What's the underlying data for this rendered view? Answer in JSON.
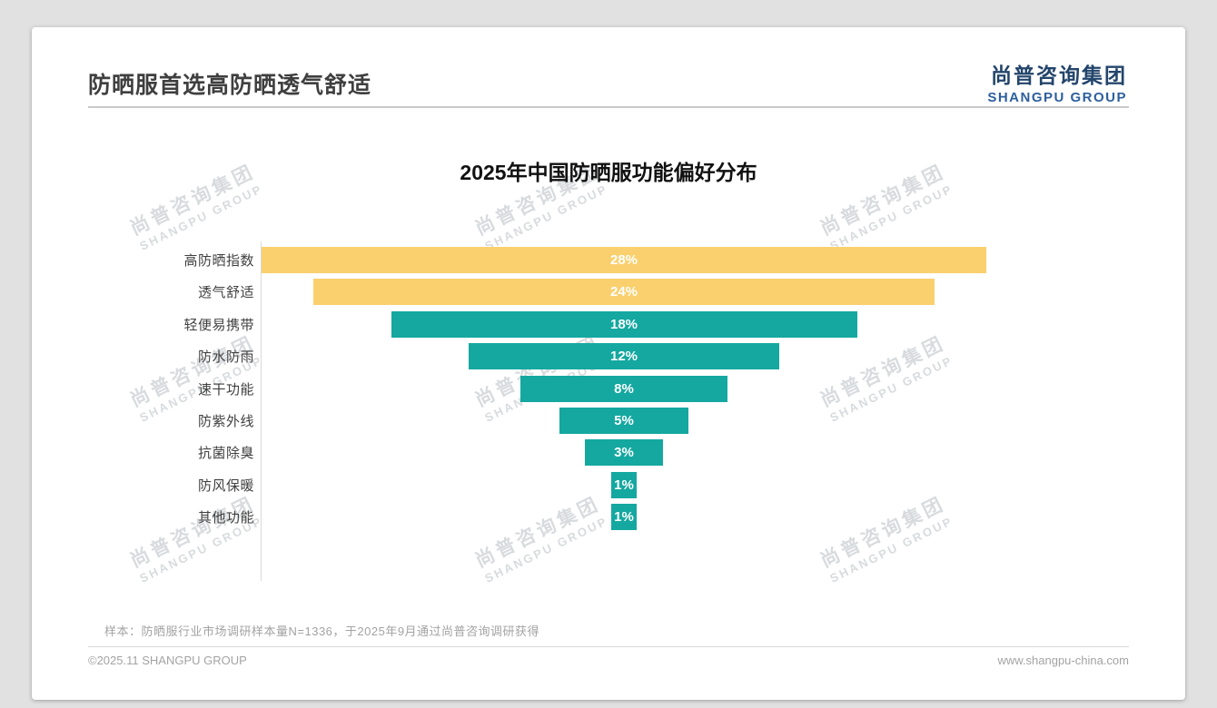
{
  "page": {
    "title": "防晒服首选高防晒透气舒适",
    "logo": {
      "name": "尚普咨询集团",
      "sub": "SHANGPU GROUP"
    },
    "watermark": {
      "cn": "尚普咨询集团",
      "en": "SHANGPU GROUP"
    },
    "note": "样本：防晒服行业市场调研样本量N=1336，于2025年9月通过尚普咨询调研获得",
    "footer_left": "©2025.11 SHANGPU GROUP",
    "footer_right": "www.shangpu-china.com"
  },
  "chart_data": {
    "type": "bar",
    "subtype": "centered-funnel-horizontal-bars",
    "title": "2025年中国防晒服功能偏好分布",
    "categories": [
      "高防晒指数",
      "透气舒适",
      "轻便易携带",
      "防水防雨",
      "速干功能",
      "防紫外线",
      "抗菌除臭",
      "防风保暖",
      "其他功能"
    ],
    "values": [
      28,
      24,
      18,
      12,
      8,
      5,
      3,
      1,
      1
    ],
    "value_labels": [
      "28%",
      "24%",
      "18%",
      "12%",
      "8%",
      "5%",
      "3%",
      "1%",
      "1%"
    ],
    "bar_colors": [
      "#fad06e",
      "#fad06e",
      "#14a8a0",
      "#14a8a0",
      "#14a8a0",
      "#14a8a0",
      "#14a8a0",
      "#14a8a0",
      "#14a8a0"
    ],
    "highlight_color": "#fad06e",
    "base_color": "#14a8a0",
    "value_suffix": "%",
    "xlim": [
      0,
      28
    ],
    "grid": false,
    "legend": "none",
    "value_label_color": "#ffffff"
  }
}
